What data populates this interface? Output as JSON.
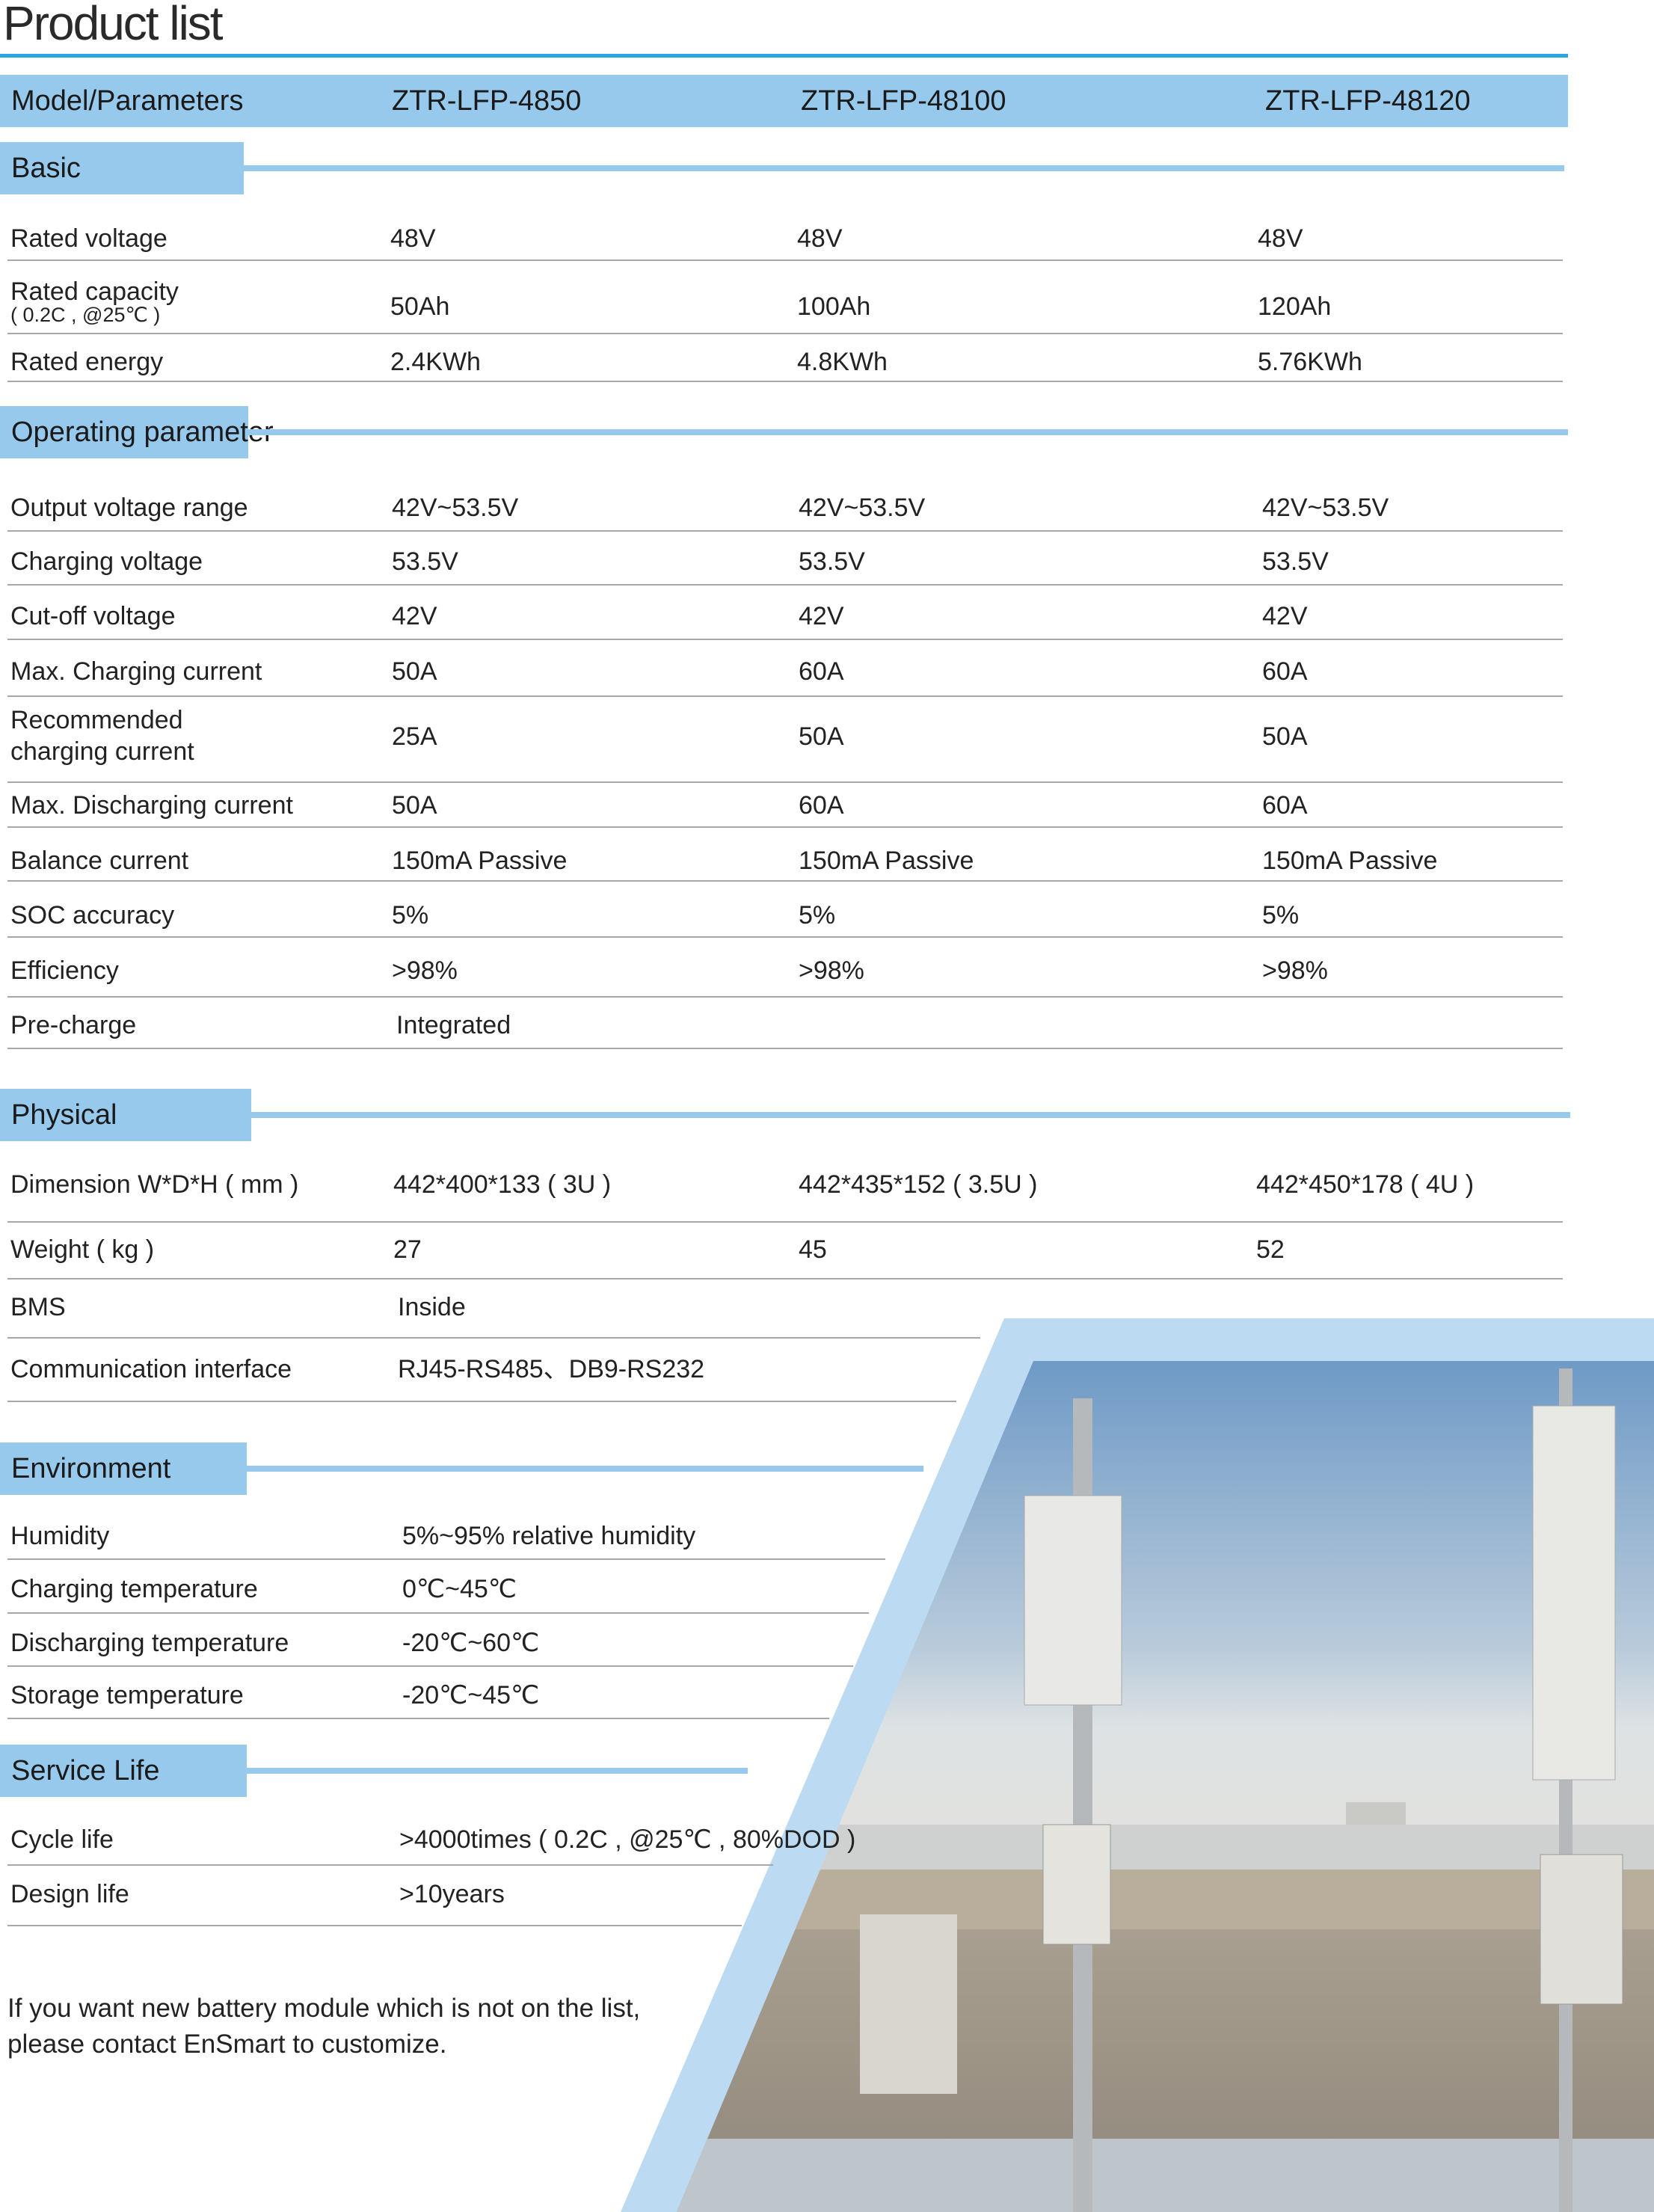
{
  "title": "Product list",
  "header": {
    "label": "Model/Parameters",
    "models": [
      "ZTR-LFP-4850",
      "ZTR-LFP-48100",
      "ZTR-LFP-48120"
    ]
  },
  "sections": [
    {
      "name": "Basic",
      "rows": [
        {
          "label": "Rated voltage",
          "values": [
            "48V",
            "48V",
            "48V"
          ]
        },
        {
          "label": "Rated capacity",
          "sublabel": "( 0.2C , @25℃ )",
          "values": [
            "50Ah",
            "100Ah",
            "120Ah"
          ]
        },
        {
          "label": "Rated energy",
          "values": [
            "2.4KWh",
            "4.8KWh",
            "5.76KWh"
          ]
        }
      ]
    },
    {
      "name": "Operating parameter",
      "rows": [
        {
          "label": "Output voltage range",
          "values": [
            "42V~53.5V",
            "42V~53.5V",
            "42V~53.5V"
          ]
        },
        {
          "label": "Charging voltage",
          "values": [
            "53.5V",
            "53.5V",
            "53.5V"
          ]
        },
        {
          "label": "Cut-off voltage",
          "values": [
            "42V",
            "42V",
            "42V"
          ]
        },
        {
          "label": "Max. Charging current",
          "values": [
            "50A",
            "60A",
            "60A"
          ]
        },
        {
          "label": "Recommended",
          "sublabel": "charging current",
          "values": [
            "25A",
            "50A",
            "50A"
          ]
        },
        {
          "label": "Max. Discharging current",
          "values": [
            "50A",
            "60A",
            "60A"
          ]
        },
        {
          "label": "Balance current",
          "values": [
            "150mA Passive",
            "150mA Passive",
            "150mA Passive"
          ]
        },
        {
          "label": "SOC accuracy",
          "values": [
            "5%",
            "5%",
            "5%"
          ]
        },
        {
          "label": "Efficiency",
          "values": [
            ">98%",
            ">98%",
            ">98%"
          ]
        },
        {
          "label": "Pre-charge",
          "values": [
            "Integrated"
          ]
        }
      ]
    },
    {
      "name": "Physical",
      "rows": [
        {
          "label": "Dimension W*D*H ( mm )",
          "values": [
            "442*400*133 ( 3U )",
            "442*435*152 ( 3.5U )",
            "442*450*178 ( 4U )"
          ]
        },
        {
          "label": "Weight ( kg )",
          "values": [
            "27",
            "45",
            "52"
          ]
        },
        {
          "label": "BMS",
          "values": [
            "Inside"
          ]
        },
        {
          "label": "Communication interface",
          "values": [
            "RJ45-RS485、DB9-RS232"
          ]
        }
      ]
    },
    {
      "name": "Environment",
      "rows": [
        {
          "label": "Humidity",
          "values": [
            "5%~95%  relative humidity"
          ]
        },
        {
          "label": "Charging temperature",
          "values": [
            "0℃~45℃"
          ]
        },
        {
          "label": "Discharging temperature",
          "values": [
            "-20℃~60℃"
          ]
        },
        {
          "label": "Storage temperature",
          "values": [
            "-20℃~45℃"
          ]
        }
      ]
    },
    {
      "name": "Service Life",
      "rows": [
        {
          "label": "Cycle life",
          "values": [
            ">4000times  ( 0.2C , @25℃ , 80%DOD )"
          ]
        },
        {
          "label": "Design life",
          "values": [
            ">10years"
          ]
        }
      ]
    }
  ],
  "footer": [
    "If you want new battery module which is not on the list,",
    "please contact EnSmart to customize."
  ],
  "colors": {
    "accent_line": "#2aa6df",
    "section_fill": "#96c9ec",
    "photo_band": "#bcdaf2"
  }
}
